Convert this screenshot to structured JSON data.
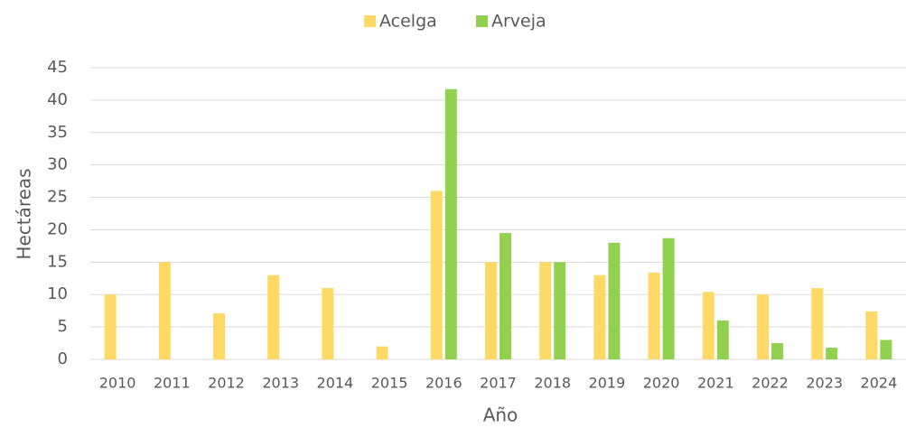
{
  "chart_data": {
    "type": "bar",
    "x_label": "Año",
    "y_label": "Hectáreas",
    "categories": [
      "2010",
      "2011",
      "2012",
      "2013",
      "2014",
      "2015",
      "2016",
      "2017",
      "2018",
      "2019",
      "2020",
      "2021",
      "2022",
      "2023",
      "2024"
    ],
    "series": [
      {
        "name": "Acelga",
        "color": "#FFD966",
        "values": [
          10,
          15,
          7.1,
          13,
          11,
          2,
          26,
          15,
          15,
          13,
          13.4,
          10.4,
          10,
          11,
          7.4
        ]
      },
      {
        "name": "Arveja",
        "color": "#92D050",
        "values": [
          null,
          null,
          null,
          null,
          null,
          null,
          41.7,
          19.5,
          15,
          18,
          18.7,
          6,
          2.5,
          1.8,
          3
        ]
      }
    ],
    "ylim": [
      0,
      45
    ],
    "yticks": [
      0,
      5,
      10,
      15,
      20,
      25,
      30,
      35,
      40,
      45
    ],
    "grid": true,
    "legend": "top"
  }
}
